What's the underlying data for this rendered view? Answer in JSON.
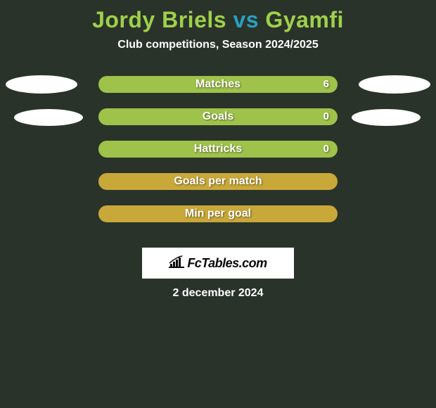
{
  "title": {
    "player1": "Jordy Briels",
    "vs": "vs",
    "player2": "Gyamfi",
    "color_p1": "#9fd04a",
    "color_vs": "#2a9fbf",
    "color_p2": "#9fd04a"
  },
  "subtitle": "Club competitions, Season 2024/2025",
  "background_color": "#2a332a",
  "rows": [
    {
      "label": "Matches",
      "value": "6",
      "bar_color": "#9fc24a",
      "show_left_ellipse": true,
      "show_right_ellipse": true,
      "indent": false
    },
    {
      "label": "Goals",
      "value": "0",
      "bar_color": "#9fc24a",
      "show_left_ellipse": true,
      "show_right_ellipse": true,
      "indent": true
    },
    {
      "label": "Hattricks",
      "value": "0",
      "bar_color": "#9fc24a",
      "show_left_ellipse": false,
      "show_right_ellipse": false,
      "indent": false
    },
    {
      "label": "Goals per match",
      "value": "",
      "bar_color": "#c9a83a",
      "show_left_ellipse": false,
      "show_right_ellipse": false,
      "indent": false
    },
    {
      "label": "Min per goal",
      "value": "",
      "bar_color": "#c9a83a",
      "show_left_ellipse": false,
      "show_right_ellipse": false,
      "indent": false
    }
  ],
  "ellipse_color": "#ffffff",
  "logo_text": "FcTables.com",
  "date": "2 december 2024"
}
